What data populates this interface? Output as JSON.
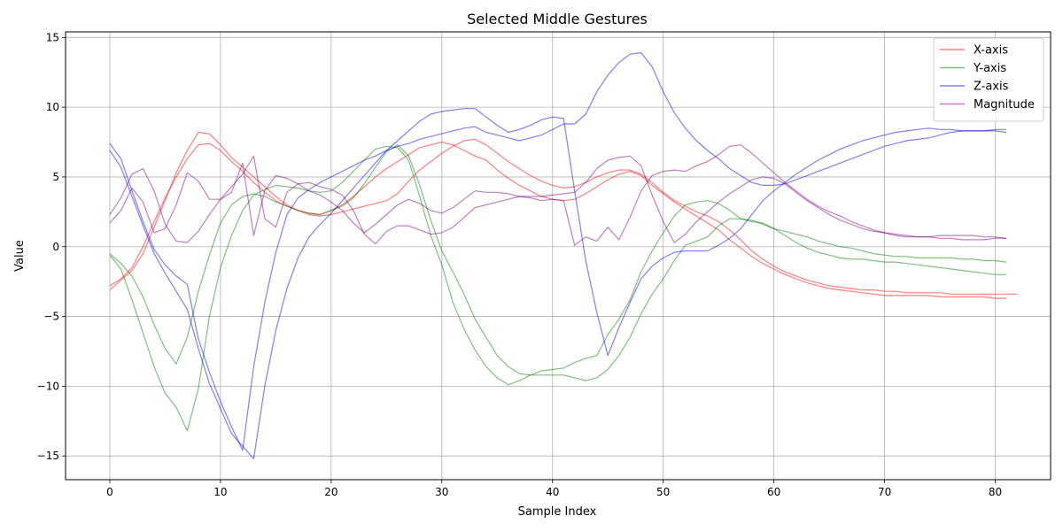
{
  "chart_data": {
    "type": "line",
    "title": "Selected Middle Gestures",
    "xlabel": "Sample Index",
    "ylabel": "Value",
    "xlim": [
      -4,
      85
    ],
    "ylim": [
      -16.7,
      15.4
    ],
    "xticks": [
      0,
      10,
      20,
      30,
      40,
      50,
      60,
      70,
      80
    ],
    "yticks": [
      -15,
      -10,
      -5,
      0,
      5,
      10,
      15
    ],
    "grid": true,
    "legend_position": "top-right",
    "legend": [
      {
        "name": "X-axis",
        "color": "#ff0000"
      },
      {
        "name": "Y-axis",
        "color": "#008000"
      },
      {
        "name": "Z-axis",
        "color": "#0000ff"
      },
      {
        "name": "Magnitude",
        "color": "#800080"
      }
    ],
    "traces": [
      {
        "series": "X-axis",
        "color": "#ff0000",
        "x0": 0,
        "values": [
          -3.1,
          -2.4,
          -1.7,
          -0.5,
          1.4,
          3.3,
          5.3,
          6.9,
          8.2,
          8.1,
          7.3,
          6.4,
          5.7,
          5.0,
          4.3,
          3.6,
          3.0,
          2.6,
          2.3,
          2.2,
          2.3,
          2.5,
          2.7,
          2.9,
          3.1,
          3.3,
          3.8,
          4.7,
          5.5,
          6.1,
          6.7,
          7.2,
          7.6,
          7.7,
          7.3,
          6.7,
          6.1,
          5.6,
          5.1,
          4.7,
          4.4,
          4.2,
          4.3,
          4.6,
          5.0,
          5.3,
          5.5,
          5.5,
          5.2,
          4.6,
          3.9,
          3.3,
          2.9,
          2.5,
          2.2,
          1.8,
          1.2,
          0.5,
          -0.3,
          -0.9,
          -1.4,
          -1.8,
          -2.1,
          -2.4,
          -2.6,
          -2.8,
          -2.9,
          -3.0,
          -3.1,
          -3.1,
          -3.2,
          -3.2,
          -3.3,
          -3.3,
          -3.3,
          -3.3,
          -3.4,
          -3.4,
          -3.4,
          -3.4,
          -3.4,
          -3.4,
          -3.4
        ]
      },
      {
        "series": "X-axis",
        "color": "#ff0000",
        "x0": 0,
        "values": [
          -2.8,
          -2.3,
          -1.5,
          0.0,
          1.8,
          3.5,
          5.0,
          6.3,
          7.3,
          7.4,
          6.9,
          6.1,
          5.4,
          4.6,
          3.9,
          3.3,
          2.9,
          2.6,
          2.4,
          2.3,
          2.6,
          3.0,
          3.6,
          4.3,
          5.0,
          5.6,
          6.1,
          6.6,
          7.1,
          7.3,
          7.5,
          7.3,
          6.9,
          6.5,
          6.2,
          5.5,
          4.9,
          4.4,
          4.0,
          3.6,
          3.4,
          3.3,
          3.4,
          3.8,
          4.3,
          4.8,
          5.2,
          5.4,
          5.1,
          4.4,
          3.8,
          3.2,
          2.7,
          2.2,
          1.7,
          1.2,
          0.5,
          -0.1,
          -0.7,
          -1.2,
          -1.6,
          -2.0,
          -2.3,
          -2.6,
          -2.8,
          -3.0,
          -3.1,
          -3.2,
          -3.3,
          -3.4,
          -3.5,
          -3.5,
          -3.5,
          -3.5,
          -3.5,
          -3.6,
          -3.6,
          -3.6,
          -3.6,
          -3.6,
          -3.7,
          -3.7
        ]
      },
      {
        "series": "Y-axis",
        "color": "#008000",
        "x0": 0,
        "values": [
          -0.5,
          -1.2,
          -2.1,
          -3.6,
          -5.6,
          -7.3,
          -8.4,
          -6.5,
          -3.2,
          -0.6,
          1.7,
          3.0,
          3.6,
          3.8,
          3.6,
          3.2,
          2.9,
          2.6,
          2.4,
          2.3,
          2.6,
          2.9,
          3.5,
          4.5,
          5.7,
          6.8,
          7.3,
          6.5,
          4.4,
          1.9,
          -0.3,
          -1.8,
          -3.4,
          -5.2,
          -6.5,
          -7.8,
          -8.6,
          -9.1,
          -9.2,
          -9.2,
          -9.2,
          -9.2,
          -9.4,
          -9.6,
          -9.4,
          -8.8,
          -7.8,
          -6.5,
          -4.8,
          -3.4,
          -2.3,
          -1.0,
          0.1,
          0.4,
          0.7,
          1.5,
          2.0,
          2.0,
          1.9,
          1.6,
          1.3,
          0.8,
          0.3,
          -0.1,
          -0.4,
          -0.6,
          -0.8,
          -0.9,
          -0.9,
          -1.0,
          -1.1,
          -1.1,
          -1.2,
          -1.3,
          -1.4,
          -1.5,
          -1.6,
          -1.7,
          -1.8,
          -1.9,
          -2.0,
          -2.0
        ]
      },
      {
        "series": "Y-axis",
        "color": "#008000",
        "x0": 0,
        "values": [
          -0.6,
          -1.6,
          -3.8,
          -6.2,
          -8.6,
          -10.5,
          -11.5,
          -13.2,
          -10.2,
          -5.0,
          -1.5,
          0.8,
          2.6,
          3.7,
          4.1,
          4.4,
          4.3,
          4.2,
          4.0,
          3.9,
          4.0,
          4.6,
          5.4,
          6.2,
          7.0,
          7.2,
          7.1,
          6.2,
          3.6,
          0.8,
          -1.3,
          -4.0,
          -5.9,
          -7.4,
          -8.6,
          -9.4,
          -9.9,
          -9.6,
          -9.2,
          -8.9,
          -8.8,
          -8.7,
          -8.3,
          -8.0,
          -7.8,
          -6.3,
          -5.2,
          -3.8,
          -1.8,
          -0.3,
          1.0,
          2.2,
          3.0,
          3.2,
          3.3,
          3.1,
          2.6,
          2.0,
          1.8,
          1.7,
          1.3,
          1.1,
          0.9,
          0.7,
          0.4,
          0.2,
          0.0,
          -0.1,
          -0.3,
          -0.5,
          -0.6,
          -0.7,
          -0.7,
          -0.8,
          -0.8,
          -0.8,
          -0.8,
          -0.9,
          -0.9,
          -1.0,
          -1.0,
          -1.1
        ]
      },
      {
        "series": "Z-axis",
        "color": "#0000ff",
        "x0": 0,
        "values": [
          7.4,
          6.3,
          4.0,
          1.8,
          -0.2,
          -1.3,
          -2.1,
          -2.7,
          -6.6,
          -9.0,
          -11.1,
          -12.9,
          -14.6,
          -8.6,
          -4.0,
          -0.4,
          2.3,
          3.5,
          4.1,
          4.6,
          5.0,
          5.4,
          5.8,
          6.2,
          6.5,
          6.9,
          7.2,
          7.4,
          7.7,
          7.9,
          8.1,
          8.3,
          8.5,
          8.6,
          8.2,
          8.0,
          7.8,
          7.6,
          7.8,
          8.0,
          8.4,
          8.8,
          8.8,
          9.5,
          11.1,
          12.3,
          13.2,
          13.8,
          13.9,
          12.9,
          11.1,
          9.6,
          8.5,
          7.6,
          6.9,
          6.3,
          5.6,
          5.1,
          4.6,
          4.4,
          4.4,
          4.5,
          4.8,
          5.1,
          5.4,
          5.7,
          6.0,
          6.3,
          6.6,
          6.9,
          7.2,
          7.4,
          7.6,
          7.7,
          7.8,
          8.0,
          8.2,
          8.3,
          8.3,
          8.3,
          8.4,
          8.4
        ]
      },
      {
        "series": "Z-axis",
        "color": "#0000ff",
        "x0": 0,
        "values": [
          6.9,
          5.7,
          3.6,
          1.5,
          -0.5,
          -1.9,
          -3.2,
          -4.5,
          -7.3,
          -9.8,
          -11.6,
          -13.4,
          -14.3,
          -15.2,
          -10.0,
          -6.0,
          -3.0,
          -0.8,
          0.7,
          1.6,
          2.4,
          3.3,
          4.2,
          5.1,
          6.0,
          6.9,
          7.6,
          8.3,
          9.0,
          9.5,
          9.7,
          9.8,
          9.9,
          9.9,
          9.3,
          8.7,
          8.2,
          8.4,
          8.7,
          9.1,
          9.3,
          9.2,
          4.0,
          -1.0,
          -4.7,
          -7.8,
          -5.8,
          -4.0,
          -2.3,
          -1.4,
          -0.8,
          -0.4,
          -0.3,
          -0.3,
          -0.3,
          0.1,
          0.6,
          1.3,
          2.3,
          3.3,
          4.0,
          4.6,
          5.2,
          5.7,
          6.2,
          6.6,
          7.0,
          7.3,
          7.6,
          7.8,
          8.0,
          8.2,
          8.3,
          8.4,
          8.5,
          8.4,
          8.4,
          8.3,
          8.3,
          8.3,
          8.3,
          8.2
        ]
      },
      {
        "series": "Magnitude",
        "color": "#800080",
        "x0": 0,
        "values": [
          2.3,
          3.5,
          5.2,
          5.6,
          4.0,
          1.6,
          0.4,
          0.3,
          1.1,
          2.3,
          3.4,
          4.3,
          5.2,
          6.5,
          2.0,
          1.4,
          3.9,
          4.5,
          4.6,
          4.3,
          4.1,
          3.7,
          2.6,
          0.9,
          0.2,
          1.1,
          1.5,
          1.5,
          1.2,
          0.9,
          1.0,
          1.4,
          2.1,
          2.8,
          3.0,
          3.2,
          3.4,
          3.6,
          3.6,
          3.6,
          3.7,
          3.8,
          3.9,
          4.6,
          5.6,
          6.2,
          6.4,
          6.5,
          5.8,
          3.7,
          1.8,
          0.3,
          0.9,
          1.8,
          2.5,
          3.2,
          3.8,
          4.3,
          4.8,
          5.0,
          4.9,
          4.5,
          3.9,
          3.3,
          2.8,
          2.3,
          1.9,
          1.6,
          1.3,
          1.1,
          1.0,
          0.8,
          0.7,
          0.7,
          0.7,
          0.8,
          0.8,
          0.8,
          0.8,
          0.7,
          0.7,
          0.6
        ]
      },
      {
        "series": "Magnitude",
        "color": "#800080",
        "x0": 0,
        "values": [
          1.7,
          2.6,
          4.2,
          3.2,
          1.0,
          1.3,
          3.0,
          5.3,
          4.7,
          3.4,
          3.4,
          3.9,
          6.0,
          0.8,
          4.0,
          5.1,
          4.9,
          4.5,
          4.0,
          3.7,
          3.2,
          2.6,
          1.7,
          1.0,
          1.6,
          2.3,
          3.0,
          3.4,
          3.1,
          2.6,
          2.4,
          2.8,
          3.4,
          4.0,
          3.9,
          3.9,
          3.8,
          3.6,
          3.5,
          3.3,
          3.4,
          3.3,
          0.1,
          0.7,
          0.4,
          1.4,
          0.5,
          2.1,
          4.0,
          5.1,
          5.4,
          5.5,
          5.4,
          5.8,
          6.1,
          6.6,
          7.2,
          7.3,
          6.7,
          6.0,
          5.3,
          4.6,
          4.0,
          3.4,
          2.9,
          2.5,
          2.2,
          1.8,
          1.5,
          1.2,
          1.0,
          0.9,
          0.8,
          0.7,
          0.7,
          0.6,
          0.6,
          0.5,
          0.5,
          0.5,
          0.6,
          0.6
        ]
      }
    ]
  }
}
